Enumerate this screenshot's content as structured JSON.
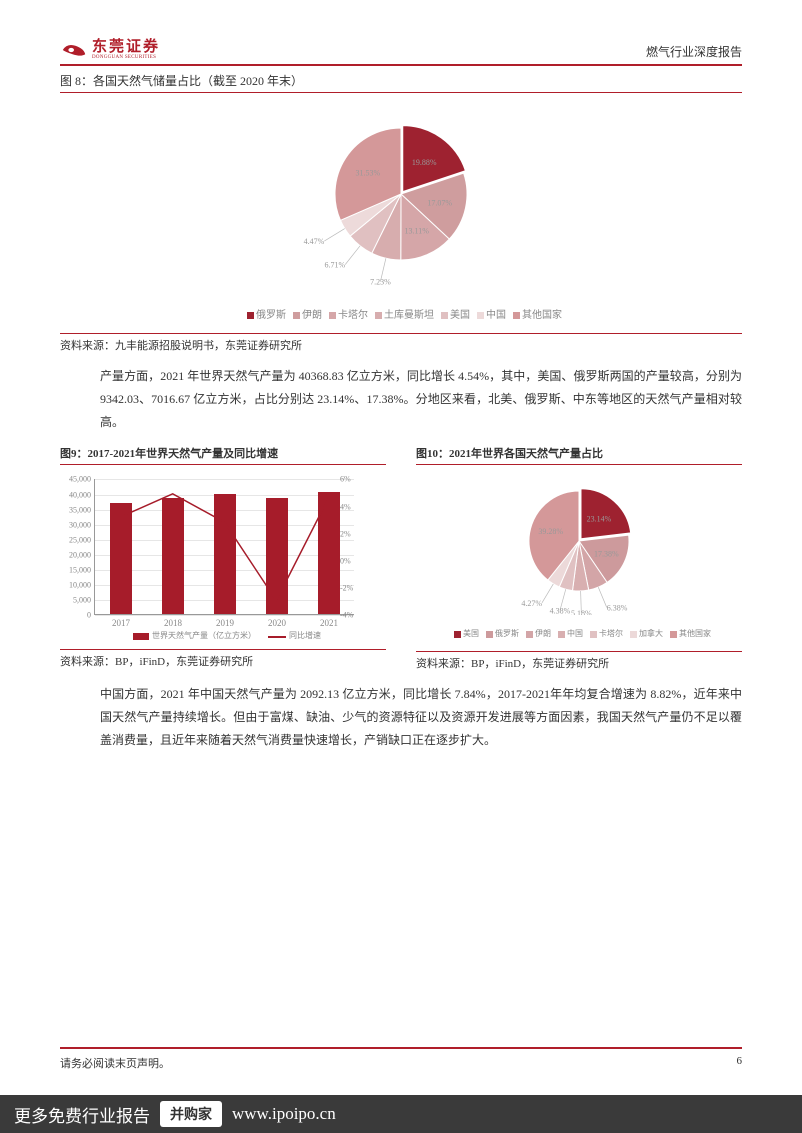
{
  "header": {
    "logo_cn": "东莞证券",
    "logo_en": "DONGGUAN SECURITIES",
    "right": "燃气行业深度报告"
  },
  "fig8": {
    "title": "图 8：各国天然气储量占比（截至 2020 年末）",
    "source": "资料来源：九丰能源招股说明书，东莞证券研究所",
    "type": "pie",
    "slices": [
      {
        "label": "俄罗斯",
        "value": 19.88,
        "color": "#9e2230",
        "text": "19.88%"
      },
      {
        "label": "伊朗",
        "value": 17.07,
        "color": "#cf9d9e",
        "text": "17.07%"
      },
      {
        "label": "卡塔尔",
        "value": 13.11,
        "color": "#d5a6a8",
        "text": "13.11%"
      },
      {
        "label": "土库曼斯坦",
        "value": 7.23,
        "color": "#d7adae",
        "text": "7.23%"
      },
      {
        "label": "美国",
        "value": 6.71,
        "color": "#e0c0c1",
        "text": "6.71%"
      },
      {
        "label": "中国",
        "value": 4.47,
        "color": "#eddada",
        "text": "4.47%"
      },
      {
        "label": "其他国家",
        "value": 31.53,
        "color": "#d49899",
        "text": "31.53%"
      }
    ],
    "legend_items": [
      "俄罗斯",
      "伊朗",
      "卡塔尔",
      "土库曼斯坦",
      "美国",
      "中国",
      "其他国家"
    ]
  },
  "para1": "产量方面，2021 年世界天然气产量为 40368.83 亿立方米，同比增长 4.54%，其中，美国、俄罗斯两国的产量较高，分别为 9342.03、7016.67 亿立方米，占比分别达 23.14%、17.38%。分地区来看，北美、俄罗斯、中东等地区的天然气产量相对较高。",
  "fig9": {
    "title": "图9：2017-2021年世界天然气产量及同比增速",
    "source": "资料来源：BP，iFinD，东莞证券研究所",
    "type": "bar-line",
    "categories": [
      "2017",
      "2018",
      "2019",
      "2020",
      "2021"
    ],
    "bar_values": [
      36800,
      38600,
      39700,
      38500,
      40368
    ],
    "line_values": [
      3.2,
      4.9,
      2.8,
      -3.0,
      4.54
    ],
    "y1_max": 45000,
    "y1_step": 5000,
    "y2_min": -4,
    "y2_max": 6,
    "y2_step": 2,
    "bar_color": "#a61c2a",
    "line_color": "#a61c2a",
    "legend_bar": "世界天然气产量（亿立方米）",
    "legend_line": "同比增速"
  },
  "fig10": {
    "title": "图10：2021年世界各国天然气产量占比",
    "source": "资料来源：BP，iFinD，东莞证券研究所",
    "type": "pie",
    "slices": [
      {
        "label": "美国",
        "value": 23.14,
        "color": "#9e2230",
        "text": "23.14%"
      },
      {
        "label": "俄罗斯",
        "value": 17.38,
        "color": "#cd9a9c",
        "text": "17.38%"
      },
      {
        "label": "伊朗",
        "value": 6.38,
        "color": "#d3a5a7",
        "text": "6.38%"
      },
      {
        "label": "中国",
        "value": 5.18,
        "color": "#d8afb0",
        "text": "5.18%"
      },
      {
        "label": "卡塔尔",
        "value": 4.38,
        "color": "#e0c1c2",
        "text": "4.38%"
      },
      {
        "label": "加拿大",
        "value": 4.27,
        "color": "#ecd9d9",
        "text": "4.27%"
      },
      {
        "label": "其他国家",
        "value": 39.28,
        "color": "#d49899",
        "text": "39.28%"
      }
    ],
    "legend_items": [
      "美国",
      "俄罗斯",
      "伊朗",
      "中国",
      "卡塔尔",
      "加拿大",
      "其他国家"
    ]
  },
  "para2": "中国方面，2021 年中国天然气产量为 2092.13 亿立方米，同比增长 7.84%，2017-2021年年均复合增速为 8.82%，近年来中国天然气产量持续增长。但由于富煤、缺油、少气的资源特征以及资源开发进展等方面因素，我国天然气产量仍不足以覆盖消费量，且近年来随着天然气消费量快速增长，产销缺口正在逐步扩大。",
  "footer": {
    "left": "请务必阅读末页声明。",
    "page": "6"
  },
  "footer_bar": {
    "text": "更多免费行业报告",
    "btn": "并购家",
    "url": "www.ipoipo.cn"
  },
  "colors": {
    "brand": "#b01e2a",
    "text_muted": "#888"
  }
}
